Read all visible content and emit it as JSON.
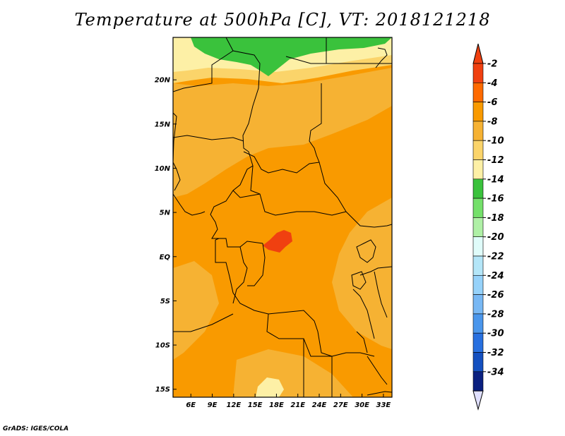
{
  "title": "Temperature at 500hPa [C], VT: 2018121218",
  "credit": "GrADS: IGES/COLA",
  "axes": {
    "lat_labels": [
      "20N",
      "15N",
      "10N",
      "5N",
      "EQ",
      "5S",
      "10S",
      "15S"
    ],
    "lat_values": [
      20,
      15,
      10,
      5,
      0,
      -5,
      -10,
      -15
    ],
    "lon_labels": [
      "6E",
      "9E",
      "12E",
      "15E",
      "18E",
      "21E",
      "24E",
      "27E",
      "30E",
      "33E"
    ],
    "lon_values": [
      6,
      9,
      12,
      15,
      18,
      21,
      24,
      27,
      30,
      33
    ]
  },
  "colorbar": {
    "labels": [
      "-2",
      "-4",
      "-6",
      "-8",
      "-10",
      "-12",
      "-14",
      "-16",
      "-18",
      "-20",
      "-22",
      "-24",
      "-26",
      "-28",
      "-30",
      "-32",
      "-34"
    ],
    "colors": [
      "#f04010",
      "#ff6a00",
      "#f99a00",
      "#f6b233",
      "#fbd46a",
      "#fdf0a6",
      "#3ac23c",
      "#74e06a",
      "#aff0a6",
      "#e0fcfa",
      "#b4e6f8",
      "#96d2fa",
      "#78b8f4",
      "#4a96ec",
      "#2870e0",
      "#1450c0",
      "#0a2080"
    ],
    "top_arrow_color": "#f04010",
    "bottom_arrow_color": "#e0e0ff"
  },
  "map_colors": {
    "base": "#f99a00",
    "lighter": "#f6b233",
    "pale": "#fbd46a",
    "palest": "#fdf0a6",
    "green": "#3ac23c",
    "warm": "#f04010",
    "border": "#000000"
  }
}
